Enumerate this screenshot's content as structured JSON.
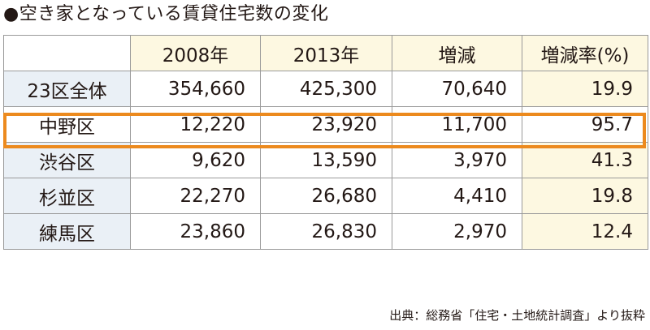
{
  "title": "●空き家となっている賃貸住宅数の変化",
  "table": {
    "headers": [
      "",
      "2008年",
      "2013年",
      "増減",
      "増減率(%)"
    ],
    "rows": [
      {
        "label": "23区全体",
        "y2008": "354,660",
        "y2013": "425,300",
        "change": "70,640",
        "rate": "19.9"
      },
      {
        "label": "中野区",
        "y2008": "12,220",
        "y2013": "23,920",
        "change": "11,700",
        "rate": "95.7"
      },
      {
        "label": "渋谷区",
        "y2008": "9,620",
        "y2013": "13,590",
        "change": "3,970",
        "rate": "41.3"
      },
      {
        "label": "杉並区",
        "y2008": "22,270",
        "y2013": "26,680",
        "change": "4,410",
        "rate": "19.8"
      },
      {
        "label": "練馬区",
        "y2008": "23,860",
        "y2013": "26,830",
        "change": "2,970",
        "rate": "12.4"
      }
    ],
    "highlight_color": "#ec8a1e"
  },
  "source": "出典：総務省「住宅・土地統計調査」より抜粋"
}
